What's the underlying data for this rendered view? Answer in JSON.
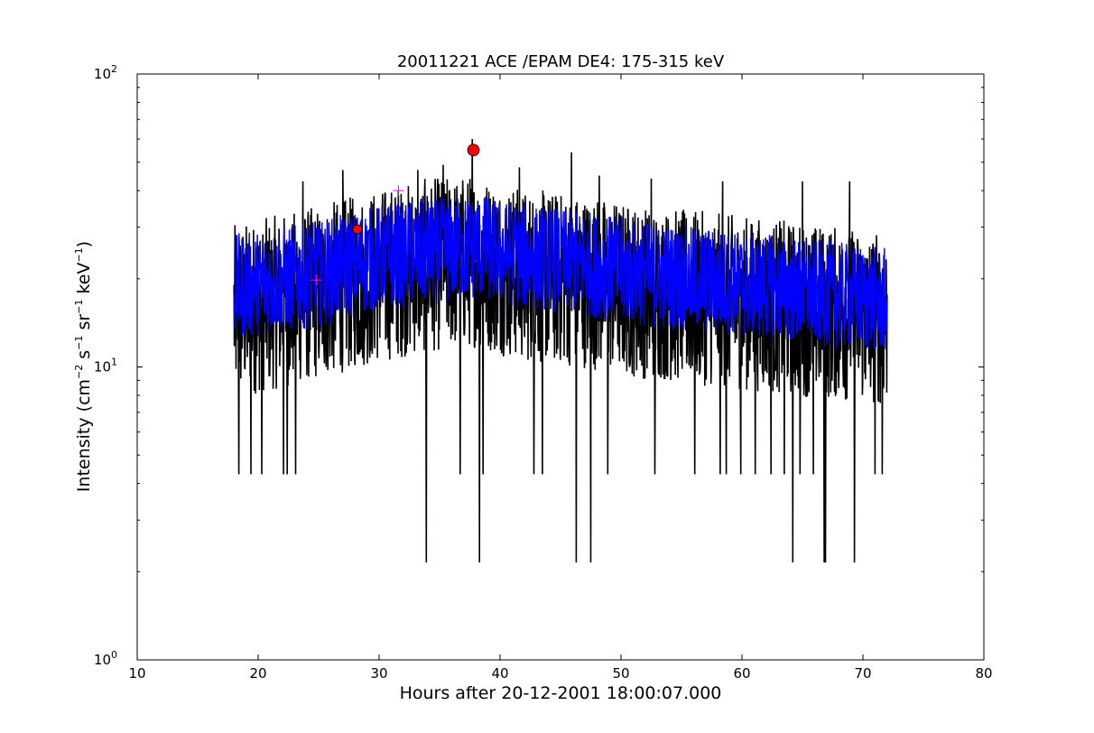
{
  "chart_data": {
    "type": "line",
    "title": "20011221 ACE /EPAM DE4: 175-315 keV",
    "xlabel": "Hours after 20-12-2001 18:00:07.000",
    "ylabel": {
      "prefix": "Intensity (cm",
      "exp1": "−2",
      "mid1": " s",
      "exp2": "−1",
      "mid2": " sr",
      "exp3": "−1",
      "mid3": " keV",
      "exp4": "−1",
      "suffix": ")"
    },
    "xlim": [
      10,
      80
    ],
    "ylim": [
      1,
      100
    ],
    "yscale": "log",
    "grid": false,
    "x_ticks": [
      "10",
      "20",
      "30",
      "40",
      "50",
      "60",
      "70",
      "80"
    ],
    "y_ticks": [
      {
        "base": "10",
        "exp": "0",
        "value": 1
      },
      {
        "base": "10",
        "exp": "1",
        "value": 10
      },
      {
        "base": "10",
        "exp": "2",
        "value": 100
      }
    ],
    "series": [
      {
        "kind": "raw",
        "color": "#000000",
        "x_range": [
          18.0,
          72.0
        ],
        "baseline": [
          [
            18,
            18
          ],
          [
            25,
            21
          ],
          [
            30,
            24
          ],
          [
            34,
            26
          ],
          [
            38,
            27
          ],
          [
            42,
            24
          ],
          [
            47,
            23
          ],
          [
            52,
            21
          ],
          [
            57,
            20
          ],
          [
            62,
            19
          ],
          [
            67,
            18
          ],
          [
            72,
            17
          ]
        ],
        "spread_typical": [
          8.6,
          34
        ],
        "dips": [
          [
            18.4,
            4.3
          ],
          [
            19.4,
            4.3
          ],
          [
            20.3,
            4.3
          ],
          [
            22.1,
            4.3
          ],
          [
            22.4,
            4.3
          ],
          [
            23.1,
            4.3
          ],
          [
            33.9,
            2.15
          ],
          [
            36.7,
            4.3
          ],
          [
            38.3,
            2.15
          ],
          [
            38.6,
            4.3
          ],
          [
            42.8,
            4.3
          ],
          [
            43.5,
            4.3
          ],
          [
            46.3,
            2.15
          ],
          [
            47.5,
            2.15
          ],
          [
            48.9,
            4.3
          ],
          [
            52.8,
            4.3
          ],
          [
            56.1,
            4.3
          ],
          [
            58.2,
            4.3
          ],
          [
            58.7,
            4.3
          ],
          [
            59.9,
            4.3
          ],
          [
            61.1,
            4.3
          ],
          [
            62.4,
            4.3
          ],
          [
            63.5,
            4.3
          ],
          [
            64.2,
            2.15
          ],
          [
            64.8,
            4.3
          ],
          [
            65.9,
            4.3
          ],
          [
            66.8,
            2.15
          ],
          [
            66.9,
            2.15
          ],
          [
            69.3,
            2.15
          ],
          [
            71.0,
            4.3
          ],
          [
            71.6,
            4.3
          ]
        ],
        "spikes": [
          [
            23.7,
            43
          ],
          [
            27.0,
            47
          ],
          [
            33.2,
            47
          ],
          [
            35.3,
            49
          ],
          [
            37.7,
            60
          ],
          [
            41.6,
            48
          ],
          [
            45.9,
            54
          ],
          [
            48.2,
            45
          ],
          [
            52.5,
            44
          ],
          [
            58.4,
            43
          ],
          [
            65.0,
            43
          ],
          [
            68.9,
            43
          ]
        ]
      },
      {
        "kind": "smoothed",
        "color": "#0000ff",
        "x_range": [
          18.0,
          72.0
        ],
        "baseline": [
          [
            18,
            19
          ],
          [
            25,
            21
          ],
          [
            30,
            24
          ],
          [
            34,
            25
          ],
          [
            38,
            26
          ],
          [
            42,
            24
          ],
          [
            47,
            23
          ],
          [
            52,
            21
          ],
          [
            57,
            20
          ],
          [
            62,
            19
          ],
          [
            67,
            18
          ],
          [
            72,
            17
          ]
        ],
        "spread_typical": [
          13,
          30
        ]
      }
    ],
    "markers": [
      {
        "type": "circle",
        "color": "#ff0000",
        "x": 37.8,
        "y": 55,
        "size": "large"
      },
      {
        "type": "circle",
        "color": "#ff0000",
        "x": 28.2,
        "y": 29.5,
        "size": "small"
      },
      {
        "type": "plus",
        "color": "#ff00ff",
        "x": 24.8,
        "y": 19.8
      },
      {
        "type": "plus",
        "color": "#ff00ff",
        "x": 31.6,
        "y": 40
      }
    ]
  }
}
